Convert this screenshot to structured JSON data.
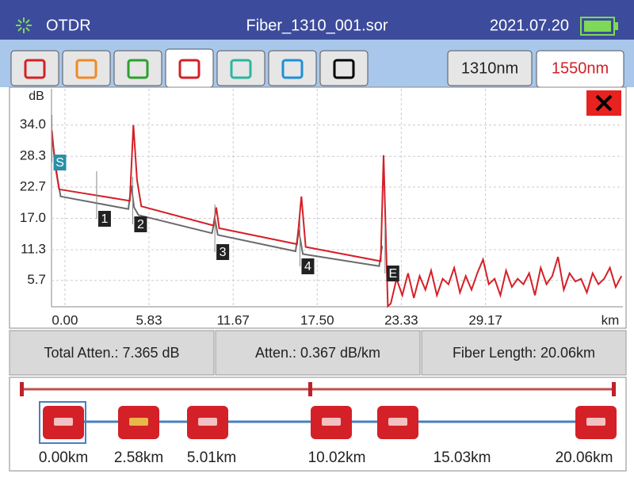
{
  "header": {
    "app": "OTDR",
    "file": "Fiber_1310_001.sor",
    "date": "2021.07.20"
  },
  "tabs": {
    "wavelengths": [
      "1310nm",
      "1550nm"
    ]
  },
  "chart_data": {
    "type": "line",
    "y_label": "dB",
    "x_label": "km",
    "xlim": [
      -0.93,
      38.7
    ],
    "ylim": [
      0.9,
      40.6
    ],
    "xticks": [
      {
        "value": 0,
        "label": "0.00"
      },
      5.83,
      11.67,
      {
        "value": 17.5,
        "label": "17.50"
      },
      23.33,
      29.17
    ],
    "yticks": [
      5.7,
      11.3,
      {
        "value": 17,
        "label": "17.0"
      },
      22.7,
      28.3,
      {
        "value": 34,
        "label": "34.0"
      }
    ],
    "grid": true,
    "series": [
      {
        "color": "#6a6a6a",
        "x": [
          -0.9,
          -0.5,
          -0.3,
          4.4,
          4.6,
          4.8,
          5.1,
          10.2,
          10.4,
          10.6,
          16.0,
          16.2,
          16.5,
          21.8,
          22.0
        ],
        "values": [
          32,
          24,
          21,
          18.7,
          23,
          19,
          17.6,
          14.3,
          17,
          14,
          11,
          15,
          10.5,
          8.3,
          12
        ]
      },
      {
        "color": "#d42027",
        "x": [
          -0.9,
          -0.7,
          -0.4,
          4.5,
          4.75,
          5.0,
          5.3,
          10.3,
          10.5,
          10.7,
          16.1,
          16.4,
          16.7,
          21.9,
          22.1,
          22.3,
          22.4,
          22.6,
          23.0,
          23.4,
          23.8,
          24.2,
          24.6,
          25.0,
          25.4,
          25.8,
          26.2,
          26.6,
          27.0,
          27.4,
          27.8,
          28.2,
          28.6,
          29.0,
          29.4,
          29.8,
          30.2,
          30.6,
          31.0,
          31.4,
          31.8,
          32.2,
          32.6,
          33.0,
          33.4,
          33.8,
          34.2,
          34.6,
          35.0,
          35.4,
          35.8,
          36.2,
          36.6,
          37.0,
          37.4,
          37.8,
          38.2,
          38.6
        ],
        "values": [
          33,
          27,
          22.3,
          20.2,
          34,
          24,
          19.2,
          15.7,
          19,
          15.2,
          12.3,
          21,
          11.8,
          9.2,
          28.5,
          10,
          1,
          1.5,
          6,
          3,
          7,
          2.5,
          6.5,
          4,
          7.5,
          3,
          6,
          5,
          8,
          3.5,
          6.5,
          4,
          7,
          9.5,
          5,
          6,
          3,
          7.5,
          4.5,
          6,
          5,
          7,
          3,
          8,
          5,
          6.5,
          10,
          4,
          7,
          5.5,
          6,
          3.5,
          7,
          5,
          6,
          8,
          4.5,
          6.5
        ]
      }
    ],
    "events": {
      "labels": [
        "S",
        "1",
        "2",
        "3",
        "4",
        "E"
      ],
      "x": [
        -0.9,
        2.2,
        4.7,
        10.4,
        16.3,
        22.2
      ]
    }
  },
  "summary": [
    "Total Atten.: 7.365 dB",
    "Atten.: 0.367 dB/km",
    "Fiber Length: 20.06km"
  ],
  "event_map": {
    "distances": [
      "0.00km",
      "2.58km",
      "5.01km",
      "10.02km",
      "15.03km",
      "20.06km"
    ]
  }
}
